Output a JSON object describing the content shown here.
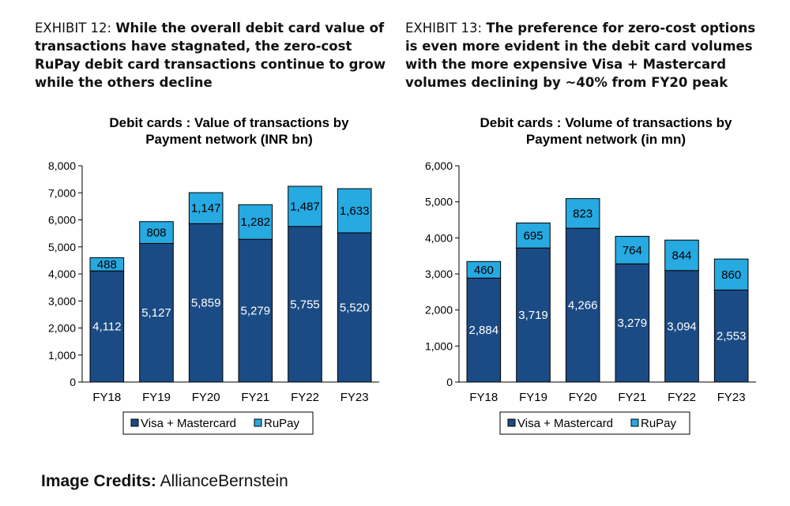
{
  "exhibits": [
    {
      "prefix": "EXHIBIT 12:",
      "headline": "While the overall debit card value of transactions have stagnated, the zero-cost RuPay debit card transactions continue to grow while the others decline"
    },
    {
      "prefix": "EXHIBIT 13:",
      "headline": "The preference for zero-cost options is even more evident in the debit card volumes with the more expensive Visa + Mastercard volumes declining by ~40% from FY20 peak"
    }
  ],
  "colors": {
    "visa_mastercard": "#1b4b84",
    "rupay": "#27a9e1",
    "axis": "#000000",
    "label": "#000000",
    "label_light": "#ffffff"
  },
  "chart_data": [
    {
      "type": "bar",
      "stacked": true,
      "title_lines": [
        "Debit cards : Value of transactions by",
        "Payment network (INR bn)"
      ],
      "categories": [
        "FY18",
        "FY19",
        "FY20",
        "FY21",
        "FY22",
        "FY23"
      ],
      "series": [
        {
          "name": "Visa + Mastercard",
          "values": [
            4112,
            5127,
            5859,
            5279,
            5755,
            5520
          ]
        },
        {
          "name": "RuPay",
          "values": [
            488,
            808,
            1147,
            1282,
            1487,
            1633
          ]
        }
      ],
      "data_labels": {
        "Visa + Mastercard": [
          "4,112",
          "5,127",
          "5,859",
          "5,279",
          "5,755",
          "5,520"
        ],
        "RuPay": [
          "488",
          "808",
          "1,147",
          "1,282",
          "1,487",
          "1,633"
        ]
      },
      "yticks": [
        0,
        1000,
        2000,
        3000,
        4000,
        5000,
        6000,
        7000,
        8000
      ],
      "ytick_labels": [
        "0",
        "1,000",
        "2,000",
        "3,000",
        "4,000",
        "5,000",
        "6,000",
        "7,000",
        "8,000"
      ],
      "ylim": [
        0,
        8000
      ],
      "xlabel": "",
      "ylabel": "",
      "legend": [
        "Visa + Mastercard",
        "RuPay"
      ],
      "legend_position": "bottom"
    },
    {
      "type": "bar",
      "stacked": true,
      "title_lines": [
        "Debit cards : Volume of transactions by",
        "Payment network (in mn)"
      ],
      "categories": [
        "FY18",
        "FY19",
        "FY20",
        "FY21",
        "FY22",
        "FY23"
      ],
      "series": [
        {
          "name": "Visa + Mastercard",
          "values": [
            2884,
            3719,
            4266,
            3279,
            3094,
            2553
          ]
        },
        {
          "name": "RuPay",
          "values": [
            460,
            695,
            823,
            764,
            844,
            860
          ]
        }
      ],
      "data_labels": {
        "Visa + Mastercard": [
          "2,884",
          "3,719",
          "4,266",
          "3,279",
          "3,094",
          "2,553"
        ],
        "RuPay": [
          "460",
          "695",
          "823",
          "764",
          "844",
          "860"
        ]
      },
      "yticks": [
        0,
        1000,
        2000,
        3000,
        4000,
        5000,
        6000
      ],
      "ytick_labels": [
        "0",
        "1,000",
        "2,000",
        "3,000",
        "4,000",
        "5,000",
        "6,000"
      ],
      "ylim": [
        0,
        6000
      ],
      "xlabel": "",
      "ylabel": "",
      "legend": [
        "Visa + Mastercard",
        "RuPay"
      ],
      "legend_position": "bottom"
    }
  ],
  "credits": {
    "label": "Image Credits:",
    "source": "AllianceBernstein"
  }
}
